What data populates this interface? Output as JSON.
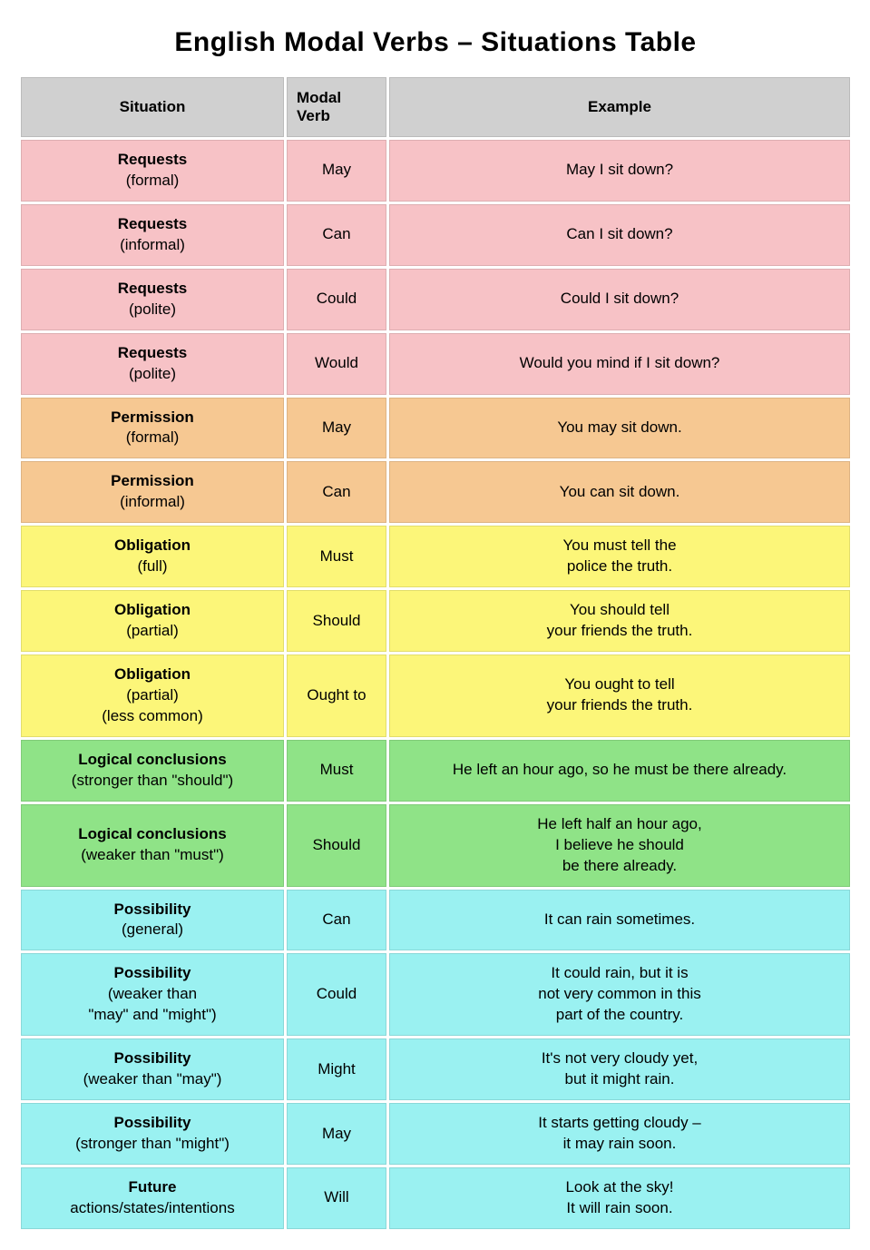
{
  "title": "English Modal Verbs – Situations Table",
  "columns": [
    "Situation",
    "Modal Verb",
    "Example"
  ],
  "colors": {
    "header": "#d0d0d0",
    "pink": "#f7c2c6",
    "orange": "#f6c892",
    "yellow": "#fcf679",
    "green": "#8fe387",
    "cyan": "#9af1f1"
  },
  "rows": [
    {
      "situation_main": "Requests",
      "situation_sub": "(formal)",
      "verb": "May",
      "example": "May I sit down?",
      "color": "pink"
    },
    {
      "situation_main": "Requests",
      "situation_sub": "(informal)",
      "verb": "Can",
      "example": "Can I sit down?",
      "color": "pink"
    },
    {
      "situation_main": "Requests",
      "situation_sub": "(polite)",
      "verb": "Could",
      "example": "Could I sit down?",
      "color": "pink"
    },
    {
      "situation_main": "Requests",
      "situation_sub": "(polite)",
      "verb": "Would",
      "example": "Would you mind if I sit down?",
      "color": "pink"
    },
    {
      "situation_main": "Permission",
      "situation_sub": "(formal)",
      "verb": "May",
      "example": "You may sit down.",
      "color": "orange"
    },
    {
      "situation_main": "Permission",
      "situation_sub": "(informal)",
      "verb": "Can",
      "example": "You can sit down.",
      "color": "orange"
    },
    {
      "situation_main": "Obligation",
      "situation_sub": "(full)",
      "verb": "Must",
      "example": "You must tell the\npolice the truth.",
      "color": "yellow"
    },
    {
      "situation_main": "Obligation",
      "situation_sub": "(partial)",
      "verb": "Should",
      "example": "You should tell\nyour friends the truth.",
      "color": "yellow"
    },
    {
      "situation_main": "Obligation",
      "situation_sub": "(partial)\n(less common)",
      "verb": "Ought to",
      "example": "You ought to tell\nyour friends the truth.",
      "color": "yellow"
    },
    {
      "situation_main": "Logical conclusions",
      "situation_sub": "(stronger than \"should\")",
      "verb": "Must",
      "example": "He left an hour ago, so he must be there already.",
      "color": "green"
    },
    {
      "situation_main": "Logical conclusions",
      "situation_sub": "(weaker than \"must\")",
      "verb": "Should",
      "example": "He left half an hour ago,\nI believe he should\nbe there already.",
      "color": "green"
    },
    {
      "situation_main": "Possibility",
      "situation_sub": "(general)",
      "verb": "Can",
      "example": "It can rain sometimes.",
      "color": "cyan"
    },
    {
      "situation_main": "Possibility",
      "situation_sub": "(weaker than\n\"may\" and \"might\")",
      "verb": "Could",
      "example": "It could rain, but it is\nnot very common in this\npart of the country.",
      "color": "cyan"
    },
    {
      "situation_main": "Possibility",
      "situation_sub": "(weaker than \"may\")",
      "verb": "Might",
      "example": "It's not very cloudy yet,\nbut it might rain.",
      "color": "cyan"
    },
    {
      "situation_main": "Possibility",
      "situation_sub": "(stronger than \"might\")",
      "verb": "May",
      "example": "It starts getting cloudy –\nit may rain soon.",
      "color": "cyan"
    },
    {
      "situation_main": "Future",
      "situation_sub": "actions/states/intentions",
      "verb": "Will",
      "example": "Look at the sky!\nIt will rain soon.",
      "color": "cyan"
    }
  ]
}
